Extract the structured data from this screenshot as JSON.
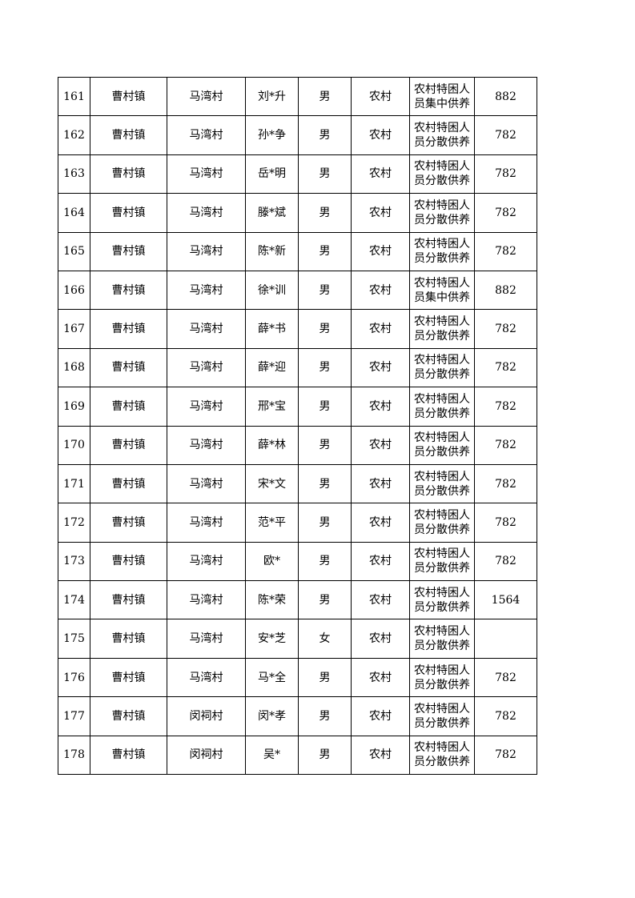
{
  "rows": [
    {
      "no": "161",
      "town": "曹村镇",
      "village": "马湾村",
      "name": "刘*升",
      "gender": "男",
      "type": "农村",
      "category": "农村特困人员集中供养",
      "amount": "882"
    },
    {
      "no": "162",
      "town": "曹村镇",
      "village": "马湾村",
      "name": "孙*争",
      "gender": "男",
      "type": "农村",
      "category": "农村特困人员分散供养",
      "amount": "782"
    },
    {
      "no": "163",
      "town": "曹村镇",
      "village": "马湾村",
      "name": "岳*明",
      "gender": "男",
      "type": "农村",
      "category": "农村特困人员分散供养",
      "amount": "782"
    },
    {
      "no": "164",
      "town": "曹村镇",
      "village": "马湾村",
      "name": "滕*斌",
      "gender": "男",
      "type": "农村",
      "category": "农村特困人员分散供养",
      "amount": "782"
    },
    {
      "no": "165",
      "town": "曹村镇",
      "village": "马湾村",
      "name": "陈*新",
      "gender": "男",
      "type": "农村",
      "category": "农村特困人员分散供养",
      "amount": "782"
    },
    {
      "no": "166",
      "town": "曹村镇",
      "village": "马湾村",
      "name": "徐*训",
      "gender": "男",
      "type": "农村",
      "category": "农村特困人员集中供养",
      "amount": "882"
    },
    {
      "no": "167",
      "town": "曹村镇",
      "village": "马湾村",
      "name": "薛*书",
      "gender": "男",
      "type": "农村",
      "category": "农村特困人员分散供养",
      "amount": "782"
    },
    {
      "no": "168",
      "town": "曹村镇",
      "village": "马湾村",
      "name": "薛*迎",
      "gender": "男",
      "type": "农村",
      "category": "农村特困人员分散供养",
      "amount": "782"
    },
    {
      "no": "169",
      "town": "曹村镇",
      "village": "马湾村",
      "name": "邢*宝",
      "gender": "男",
      "type": "农村",
      "category": "农村特困人员分散供养",
      "amount": "782"
    },
    {
      "no": "170",
      "town": "曹村镇",
      "village": "马湾村",
      "name": "薛*林",
      "gender": "男",
      "type": "农村",
      "category": "农村特困人员分散供养",
      "amount": "782"
    },
    {
      "no": "171",
      "town": "曹村镇",
      "village": "马湾村",
      "name": "宋*文",
      "gender": "男",
      "type": "农村",
      "category": "农村特困人员分散供养",
      "amount": "782"
    },
    {
      "no": "172",
      "town": "曹村镇",
      "village": "马湾村",
      "name": "范*平",
      "gender": "男",
      "type": "农村",
      "category": "农村特困人员分散供养",
      "amount": "782"
    },
    {
      "no": "173",
      "town": "曹村镇",
      "village": "马湾村",
      "name": "欧*",
      "gender": "男",
      "type": "农村",
      "category": "农村特困人员分散供养",
      "amount": "782"
    },
    {
      "no": "174",
      "town": "曹村镇",
      "village": "马湾村",
      "name": "陈*荣",
      "gender": "男",
      "type": "农村",
      "category": "农村特困人员分散供养",
      "amount": "1564"
    },
    {
      "no": "175",
      "town": "曹村镇",
      "village": "马湾村",
      "name": "安*芝",
      "gender": "女",
      "type": "农村",
      "category": "农村特困人员分散供养",
      "amount": ""
    },
    {
      "no": "176",
      "town": "曹村镇",
      "village": "马湾村",
      "name": "马*全",
      "gender": "男",
      "type": "农村",
      "category": "农村特困人员分散供养",
      "amount": "782"
    },
    {
      "no": "177",
      "town": "曹村镇",
      "village": "闵祠村",
      "name": "闵*孝",
      "gender": "男",
      "type": "农村",
      "category": "农村特困人员分散供养",
      "amount": "782"
    },
    {
      "no": "178",
      "town": "曹村镇",
      "village": "闵祠村",
      "name": "吴*",
      "gender": "男",
      "type": "农村",
      "category": "农村特困人员分散供养",
      "amount": "782"
    }
  ]
}
